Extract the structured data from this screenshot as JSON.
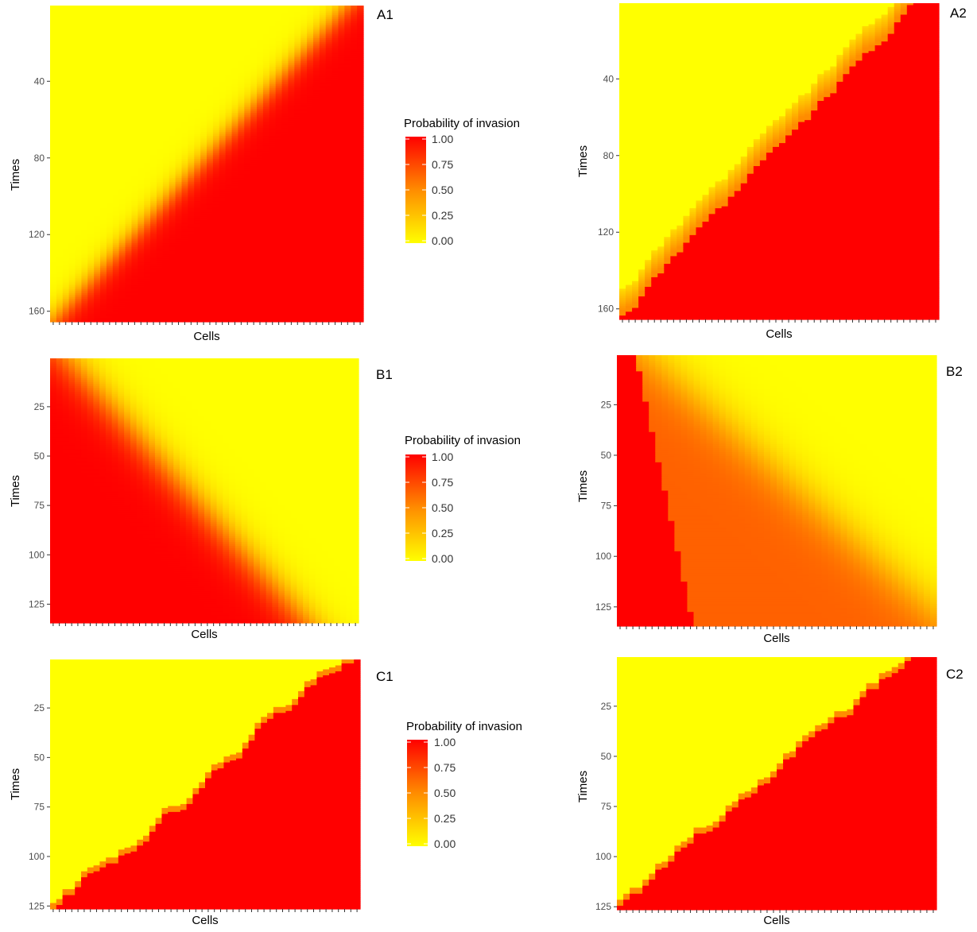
{
  "figure": {
    "type": "heatmap-grid",
    "rows": 3,
    "cols": 2
  },
  "colors": {
    "low": "#FFFF00",
    "high": "#FF0000",
    "tick": "#333333"
  },
  "legends": [
    {
      "title": "Probability of invasion",
      "labels": [
        "1.00",
        "0.75",
        "0.50",
        "0.25",
        "0.00"
      ]
    },
    {
      "title": "Probability of invasion",
      "labels": [
        "1.00",
        "0.75",
        "0.50",
        "0.25",
        "0.00"
      ]
    },
    {
      "title": "Probability of invasion",
      "labels": [
        "1.00",
        "0.75",
        "0.50",
        "0.25",
        "0.00"
      ]
    }
  ],
  "chart_data": [
    {
      "panel": "A1",
      "type": "heatmap",
      "xlabel": "Cells",
      "ylabel": "Times",
      "n_cells": 50,
      "time_range": [
        1,
        165
      ],
      "y_ticks": [
        40,
        80,
        120,
        160
      ],
      "value_range": [
        0,
        1
      ],
      "color_scale": [
        "#FFFF00",
        "#FF0000"
      ],
      "pattern": "smooth gradient; invasion front rises diagonally from lower-left to upper-right",
      "front": [
        {
          "cell": 1,
          "time": 165,
          "value": 1
        },
        {
          "cell": 10,
          "time": 140,
          "value": 1
        },
        {
          "cell": 20,
          "time": 110,
          "value": 1
        },
        {
          "cell": 30,
          "time": 80,
          "value": 1
        },
        {
          "cell": 40,
          "time": 40,
          "value": 1
        },
        {
          "cell": 45,
          "time": 15,
          "value": 1
        },
        {
          "cell": 47,
          "time": 1,
          "value": 1
        }
      ]
    },
    {
      "panel": "A2",
      "type": "heatmap",
      "xlabel": "Cells",
      "ylabel": "Times",
      "n_cells": 50,
      "time_range": [
        1,
        165
      ],
      "y_ticks": [
        40,
        80,
        120,
        160
      ],
      "value_range": [
        0,
        1
      ],
      "color_scale": [
        "#FFFF00",
        "#FF0000"
      ],
      "pattern": "sharp stepped boundary rising diagonally from lower-left to upper-right",
      "front": [
        {
          "cell": 1,
          "time": 165,
          "value": 1
        },
        {
          "cell": 10,
          "time": 135,
          "value": 1
        },
        {
          "cell": 20,
          "time": 105,
          "value": 1
        },
        {
          "cell": 30,
          "time": 70,
          "value": 1
        },
        {
          "cell": 40,
          "time": 20,
          "value": 1
        },
        {
          "cell": 45,
          "time": 10,
          "value": 1
        },
        {
          "cell": 47,
          "time": 1,
          "value": 1
        }
      ]
    },
    {
      "panel": "B1",
      "type": "heatmap",
      "xlabel": "Cells",
      "ylabel": "Times",
      "n_cells": 50,
      "time_range": [
        1,
        134
      ],
      "y_ticks": [
        25,
        50,
        75,
        100,
        125
      ],
      "value_range": [
        0,
        1
      ],
      "color_scale": [
        "#FFFF00",
        "#FF0000"
      ],
      "pattern": "smooth gradient; invasion front descends from upper-left to lower-right",
      "front": [
        {
          "cell": 2,
          "time": 1,
          "value": 1
        },
        {
          "cell": 10,
          "time": 25,
          "value": 1
        },
        {
          "cell": 20,
          "time": 60,
          "value": 1
        },
        {
          "cell": 30,
          "time": 95,
          "value": 1
        },
        {
          "cell": 40,
          "time": 125,
          "value": 1
        },
        {
          "cell": 50,
          "time": 134,
          "value": 0.15
        }
      ]
    },
    {
      "panel": "B2",
      "type": "heatmap",
      "xlabel": "Cells",
      "ylabel": "Times",
      "n_cells": 50,
      "time_range": [
        1,
        134
      ],
      "y_ticks": [
        25,
        50,
        75,
        100,
        125
      ],
      "value_range": [
        0,
        1
      ],
      "color_scale": [
        "#FFFF00",
        "#FF0000"
      ],
      "pattern": "narrow fully invaded wedge on the left with a broad orange (about 0.6) band descending to the right",
      "front": [
        {
          "cell": 3,
          "time": 1,
          "value": 1
        },
        {
          "cell": 7,
          "time": 30,
          "value": 1
        },
        {
          "cell": 10,
          "time": 80,
          "value": 1
        },
        {
          "cell": 12,
          "time": 125,
          "value": 1
        },
        {
          "cell": 20,
          "time": 30,
          "value": 0.6
        },
        {
          "cell": 35,
          "time": 90,
          "value": 0.6
        },
        {
          "cell": 50,
          "time": 134,
          "value": 0.4
        }
      ]
    },
    {
      "panel": "C1",
      "type": "heatmap",
      "xlabel": "Cells",
      "ylabel": "Times",
      "n_cells": 50,
      "time_range": [
        1,
        126
      ],
      "y_ticks": [
        25,
        50,
        75,
        100,
        125
      ],
      "value_range": [
        0,
        1
      ],
      "color_scale": [
        "#FFFF00",
        "#FF0000"
      ],
      "pattern": "stepped boundary rising diagonally from lower-left to upper-right",
      "front": [
        {
          "cell": 1,
          "time": 126,
          "value": 1
        },
        {
          "cell": 12,
          "time": 100,
          "value": 1
        },
        {
          "cell": 25,
          "time": 70,
          "value": 1
        },
        {
          "cell": 38,
          "time": 35,
          "value": 1
        },
        {
          "cell": 45,
          "time": 15,
          "value": 1
        },
        {
          "cell": 48,
          "time": 1,
          "value": 1
        }
      ]
    },
    {
      "panel": "C2",
      "type": "heatmap",
      "xlabel": "Cells",
      "ylabel": "Times",
      "n_cells": 50,
      "time_range": [
        1,
        126
      ],
      "y_ticks": [
        25,
        50,
        75,
        100,
        125
      ],
      "value_range": [
        0,
        1
      ],
      "color_scale": [
        "#FFFF00",
        "#FF0000"
      ],
      "pattern": "stepped boundary rising diagonally from lower-left to upper-right",
      "front": [
        {
          "cell": 1,
          "time": 126,
          "value": 1
        },
        {
          "cell": 12,
          "time": 100,
          "value": 1
        },
        {
          "cell": 25,
          "time": 70,
          "value": 1
        },
        {
          "cell": 38,
          "time": 35,
          "value": 1
        },
        {
          "cell": 45,
          "time": 15,
          "value": 1
        },
        {
          "cell": 48,
          "time": 1,
          "value": 1
        }
      ]
    }
  ]
}
